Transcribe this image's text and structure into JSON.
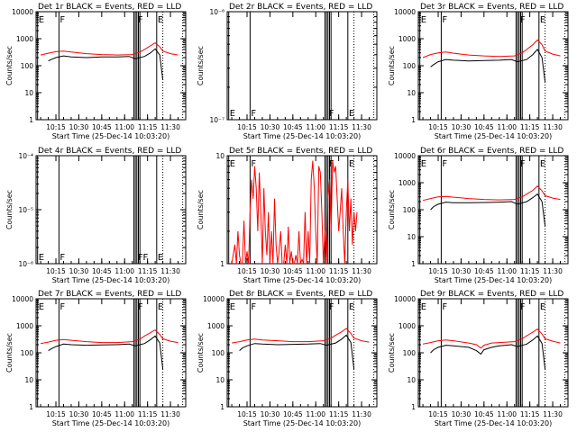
{
  "chart_data": [
    {
      "type": "line",
      "title": "Det 1r BLACK = Events, RED = LLD",
      "xlabel": "Start Time (25-Dec-14 10:03:20)",
      "ylabel": "Counts/sec",
      "yscale": "log",
      "ylim": [
        1,
        10000
      ],
      "ytick_labels": [
        "1",
        "10",
        "100",
        "1000",
        "10000"
      ],
      "xlim_minutes": [
        0,
        95
      ],
      "xtick_labels": [
        "10:15",
        "10:30",
        "10:45",
        "11:00",
        "11:15",
        "11:30"
      ],
      "flag_labels": [
        "E",
        "F",
        "F",
        "E"
      ],
      "series": [
        {
          "color": "#ff0000",
          "x": [
            0,
            5,
            10,
            15,
            20,
            30,
            40,
            50,
            60,
            65,
            68,
            72,
            75,
            78,
            80,
            85,
            90
          ],
          "y": [
            250,
            290,
            330,
            350,
            320,
            280,
            260,
            250,
            260,
            320,
            400,
            550,
            700,
            500,
            350,
            280,
            250
          ]
        },
        {
          "color": "#000000",
          "x": [
            5,
            7,
            10,
            15,
            20,
            30,
            40,
            50,
            58,
            62,
            68,
            72,
            75,
            78,
            80
          ],
          "y": [
            150,
            170,
            200,
            230,
            210,
            200,
            210,
            210,
            220,
            180,
            220,
            300,
            420,
            250,
            30
          ]
        }
      ]
    },
    {
      "type": "line",
      "title": "Det 2r BLACK = Events, RED = LLD",
      "xlabel": "Start Time (25-Dec-14 10:03:20)",
      "ylabel": "Counts/sec",
      "yscale": "log",
      "ylim": [
        1e-07,
        1e-06
      ],
      "ytick_labels": [
        "10⁻⁷",
        "10⁻⁶"
      ],
      "xlim_minutes": [
        0,
        95
      ],
      "xtick_labels": [
        "10:15",
        "10:30",
        "10:45",
        "11:00",
        "11:15",
        "11:30"
      ],
      "flag_labels": [
        "E",
        "F",
        "F",
        "E"
      ],
      "series": []
    },
    {
      "type": "line",
      "title": "Det 3r BLACK = Events, RED = LLD",
      "xlabel": "Start Time (25-Dec-14 10:03:20)",
      "ylabel": "Counts/sec",
      "yscale": "log",
      "ylim": [
        1,
        10000
      ],
      "ytick_labels": [
        "1",
        "10",
        "100",
        "1000",
        "10000"
      ],
      "xlim_minutes": [
        0,
        95
      ],
      "xtick_labels": [
        "10:15",
        "10:30",
        "10:45",
        "11:00",
        "11:15",
        "11:30"
      ],
      "flag_labels": [
        "E",
        "F",
        "F",
        "E"
      ],
      "series": [
        {
          "color": "#ff0000",
          "x": [
            0,
            5,
            10,
            15,
            20,
            30,
            40,
            50,
            60,
            65,
            68,
            72,
            75,
            78,
            80,
            85,
            90
          ],
          "y": [
            200,
            260,
            300,
            320,
            290,
            250,
            230,
            220,
            230,
            300,
            400,
            600,
            900,
            600,
            350,
            270,
            230
          ]
        },
        {
          "color": "#000000",
          "x": [
            5,
            7,
            10,
            15,
            20,
            30,
            40,
            50,
            58,
            62,
            68,
            72,
            75,
            78,
            80
          ],
          "y": [
            90,
            110,
            140,
            170,
            160,
            150,
            155,
            160,
            170,
            140,
            170,
            260,
            400,
            200,
            25
          ]
        }
      ]
    },
    {
      "type": "line",
      "title": "Det 4r BLACK = Events, RED = LLD",
      "xlabel": "Start Time (25-Dec-14 10:03:20)",
      "ylabel": "Counts/sec",
      "yscale": "log",
      "ylim": [
        1e-06,
        0.0001
      ],
      "ytick_labels": [
        "10⁻⁶",
        "10⁻⁵",
        "10⁻⁴"
      ],
      "xlim_minutes": [
        0,
        95
      ],
      "xtick_labels": [
        "10:15",
        "10:30",
        "10:45",
        "11:00",
        "11:15",
        "11:30"
      ],
      "flag_labels": [
        "E",
        "F",
        "FF",
        "E"
      ],
      "series": []
    },
    {
      "type": "line",
      "title": "Det 5r BLACK = Events, RED = LLD",
      "xlabel": "Start Time (25-Dec-14 10:03:20)",
      "ylabel": "Counts/sec",
      "yscale": "log",
      "ylim": [
        1,
        10
      ],
      "ytick_labels": [
        "1",
        "10"
      ],
      "xlim_minutes": [
        0,
        95
      ],
      "xtick_labels": [
        "10:15",
        "10:30",
        "10:45",
        "11:00",
        "11:15",
        "11:30"
      ],
      "flag_labels": [
        "E",
        "F",
        "F",
        "E"
      ],
      "series": [
        {
          "color": "#ff0000",
          "x": [
            0,
            2,
            3,
            4,
            5,
            6,
            7,
            8,
            9,
            10,
            11,
            12,
            13,
            14,
            15,
            16,
            17,
            18,
            19,
            20,
            21,
            22,
            23,
            24,
            25,
            26,
            27,
            28,
            29,
            30,
            31,
            32,
            33,
            34,
            35,
            36,
            37,
            38,
            39,
            40,
            41,
            42,
            43,
            44,
            45,
            46,
            47,
            48,
            49,
            50,
            51,
            52,
            53,
            54,
            55,
            56,
            57,
            58,
            59,
            60,
            61,
            62,
            63,
            64,
            65,
            66,
            67,
            68,
            69,
            70,
            71,
            72,
            73,
            74,
            75,
            76,
            77,
            78,
            79,
            80,
            81,
            82
          ],
          "y": [
            1,
            1.5,
            1,
            2,
            1.2,
            1,
            1,
            2.5,
            1,
            1.3,
            1,
            3,
            6,
            4,
            8,
            5,
            2,
            7,
            3,
            1,
            5,
            2,
            1.2,
            3,
            1,
            2,
            1,
            4,
            1.5,
            1,
            1.3,
            2,
            1,
            1,
            1.5,
            1,
            2.2,
            1,
            1.3,
            1,
            1,
            1.2,
            1,
            2,
            1,
            1.1,
            1,
            3,
            1,
            2,
            1,
            6,
            9,
            5,
            2,
            1,
            8,
            7,
            3,
            1,
            2,
            1,
            4,
            6,
            2,
            9,
            7,
            8,
            4,
            2,
            3,
            5,
            2,
            1,
            3,
            6,
            2,
            4,
            1.5,
            3,
            2,
            3
          ]
        }
      ]
    },
    {
      "type": "line",
      "title": "Det 6r BLACK = Events, RED = LLD",
      "xlabel": "Start Time (25-Dec-14 10:03:20)",
      "ylabel": "Counts/sec",
      "yscale": "log",
      "ylim": [
        1,
        10000
      ],
      "ytick_labels": [
        "1",
        "10",
        "100",
        "1000",
        "10000"
      ],
      "xlim_minutes": [
        0,
        95
      ],
      "xtick_labels": [
        "10:15",
        "10:30",
        "10:45",
        "11:00",
        "11:15",
        "11:30"
      ],
      "flag_labels": [
        "E",
        "F",
        "F",
        "E"
      ],
      "series": [
        {
          "color": "#ff0000",
          "x": [
            0,
            5,
            10,
            15,
            20,
            30,
            40,
            50,
            60,
            65,
            68,
            72,
            75,
            78,
            80,
            85,
            90
          ],
          "y": [
            220,
            260,
            300,
            310,
            290,
            260,
            240,
            230,
            240,
            300,
            380,
            520,
            750,
            500,
            330,
            270,
            240
          ]
        },
        {
          "color": "#000000",
          "x": [
            5,
            7,
            10,
            15,
            20,
            30,
            40,
            50,
            58,
            62,
            68,
            72,
            75,
            78,
            80
          ],
          "y": [
            100,
            130,
            160,
            190,
            180,
            180,
            185,
            190,
            200,
            160,
            200,
            280,
            380,
            200,
            25
          ]
        }
      ]
    },
    {
      "type": "line",
      "title": "Det 7r BLACK = Events, RED = LLD",
      "xlabel": "Start Time (25-Dec-14 10:03:20)",
      "ylabel": "Counts/sec",
      "yscale": "log",
      "ylim": [
        1,
        10000
      ],
      "ytick_labels": [
        "1",
        "10",
        "100",
        "1000",
        "10000"
      ],
      "xlim_minutes": [
        0,
        95
      ],
      "xtick_labels": [
        "10:15",
        "10:30",
        "10:45",
        "11:00",
        "11:15",
        "11:30"
      ],
      "flag_labels": [
        "E",
        "F",
        "F",
        "E"
      ],
      "series": [
        {
          "color": "#ff0000",
          "x": [
            0,
            5,
            10,
            15,
            20,
            30,
            40,
            50,
            60,
            65,
            68,
            72,
            75,
            78,
            80,
            85,
            90
          ],
          "y": [
            220,
            250,
            290,
            310,
            290,
            260,
            240,
            240,
            260,
            320,
            420,
            560,
            700,
            480,
            330,
            270,
            240
          ]
        },
        {
          "color": "#000000",
          "x": [
            5,
            7,
            10,
            15,
            20,
            30,
            40,
            50,
            58,
            62,
            68,
            72,
            75,
            78,
            80
          ],
          "y": [
            120,
            140,
            170,
            210,
            200,
            190,
            195,
            200,
            210,
            180,
            220,
            310,
            420,
            230,
            25
          ]
        }
      ]
    },
    {
      "type": "line",
      "title": "Det 8r BLACK = Events, RED = LLD",
      "xlabel": "Start Time (25-Dec-14 10:03:20)",
      "ylabel": "Counts/sec",
      "yscale": "log",
      "ylim": [
        1,
        10000
      ],
      "ytick_labels": [
        "1",
        "10",
        "100",
        "1000",
        "10000"
      ],
      "xlim_minutes": [
        0,
        95
      ],
      "xtick_labels": [
        "10:15",
        "10:30",
        "10:45",
        "11:00",
        "11:15",
        "11:30"
      ],
      "flag_labels": [
        "E",
        "F",
        "F",
        "E"
      ],
      "series": [
        {
          "color": "#ff0000",
          "x": [
            0,
            5,
            10,
            15,
            20,
            30,
            40,
            50,
            60,
            65,
            68,
            72,
            75,
            78,
            80,
            85,
            90
          ],
          "y": [
            230,
            260,
            300,
            320,
            300,
            280,
            260,
            260,
            280,
            350,
            450,
            600,
            800,
            520,
            350,
            280,
            250
          ]
        },
        {
          "color": "#000000",
          "x": [
            5,
            7,
            10,
            15,
            20,
            30,
            40,
            50,
            58,
            62,
            68,
            72,
            75,
            78,
            80
          ],
          "y": [
            120,
            150,
            180,
            220,
            210,
            200,
            205,
            210,
            220,
            190,
            230,
            320,
            450,
            240,
            25
          ]
        }
      ]
    },
    {
      "type": "line",
      "title": "Det 9r BLACK = Events, RED = LLD",
      "xlabel": "Start Time (25-Dec-14 10:03:20)",
      "ylabel": "Counts/sec",
      "yscale": "log",
      "ylim": [
        1,
        10000
      ],
      "ytick_labels": [
        "1",
        "10",
        "100",
        "1000",
        "10000"
      ],
      "xlim_minutes": [
        0,
        95
      ],
      "xtick_labels": [
        "10:15",
        "10:30",
        "10:45",
        "11:00",
        "11:15",
        "11:30"
      ],
      "flag_labels": [
        "E",
        "F",
        "F",
        "E"
      ],
      "series": [
        {
          "color": "#ff0000",
          "x": [
            0,
            5,
            10,
            15,
            20,
            30,
            35,
            38,
            40,
            45,
            50,
            60,
            65,
            68,
            72,
            75,
            78,
            80,
            85,
            90
          ],
          "y": [
            210,
            240,
            280,
            300,
            280,
            230,
            200,
            150,
            190,
            230,
            240,
            260,
            330,
            430,
            580,
            750,
            500,
            330,
            270,
            230
          ]
        },
        {
          "color": "#000000",
          "x": [
            5,
            7,
            10,
            15,
            20,
            30,
            35,
            38,
            40,
            45,
            50,
            58,
            62,
            68,
            72,
            75,
            78,
            80
          ],
          "y": [
            100,
            130,
            160,
            190,
            180,
            160,
            120,
            90,
            130,
            160,
            180,
            200,
            170,
            210,
            300,
            420,
            220,
            25
          ]
        }
      ]
    }
  ]
}
